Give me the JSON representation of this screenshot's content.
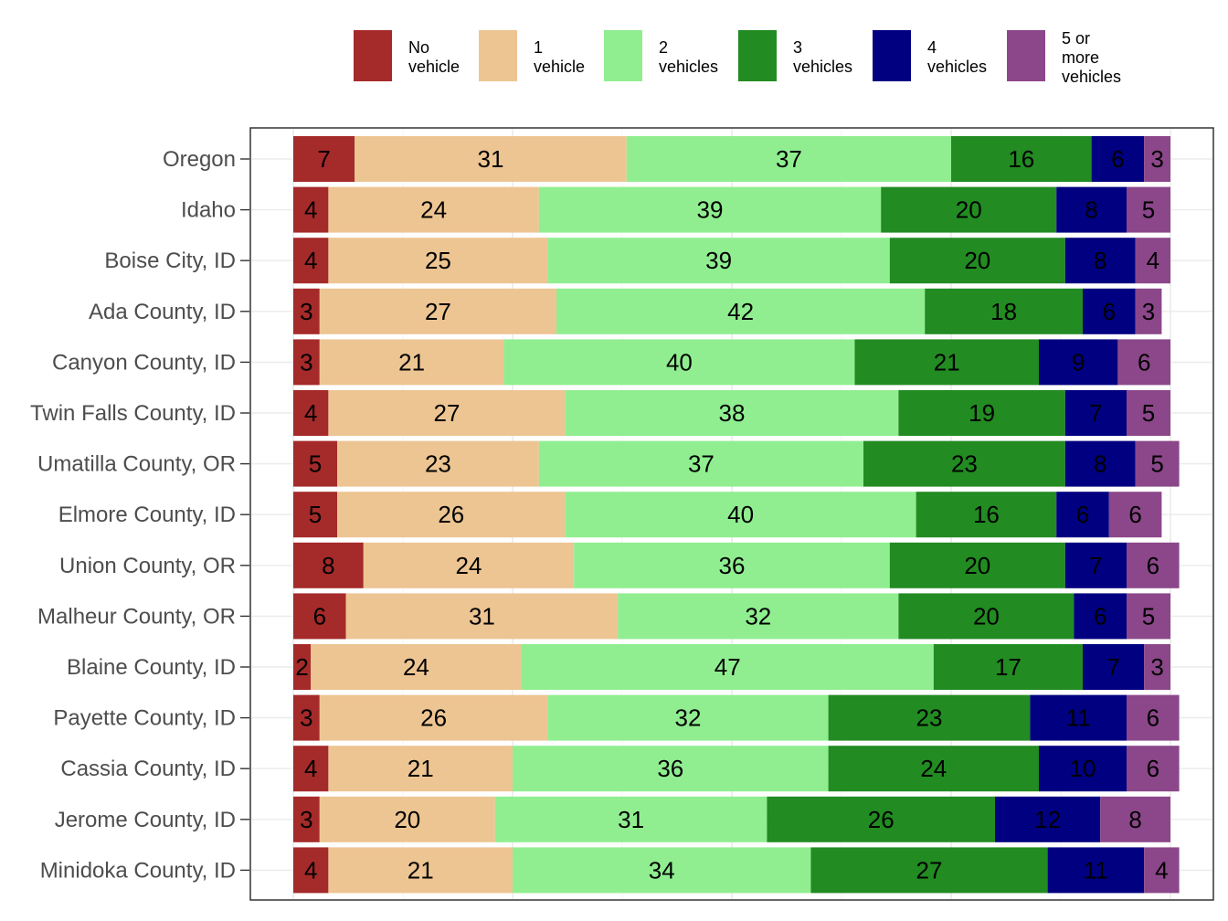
{
  "chart_data": {
    "type": "bar",
    "orientation": "horizontal",
    "stacked": true,
    "normalized_percent": true,
    "title": "",
    "xlabel": "",
    "ylabel": "",
    "xlim": [
      0,
      100
    ],
    "grid": true,
    "legend_position": "top",
    "categories": [
      "Oregon",
      "Idaho",
      "Boise City, ID",
      "Ada County, ID",
      "Canyon County, ID",
      "Twin Falls County, ID",
      "Umatilla County, OR",
      "Elmore County, ID",
      "Union County, OR",
      "Malheur County, OR",
      "Blaine County, ID",
      "Payette County, ID",
      "Cassia County, ID",
      "Jerome County, ID",
      "Minidoka County, ID"
    ],
    "series": [
      {
        "name": "No vehicle",
        "legend_lines": [
          "No",
          "vehicle"
        ],
        "color": "#a52a2a",
        "values": [
          7,
          4,
          4,
          3,
          3,
          4,
          5,
          5,
          8,
          6,
          2,
          3,
          4,
          3,
          4
        ]
      },
      {
        "name": "1 vehicle",
        "legend_lines": [
          "1",
          "vehicle"
        ],
        "color": "#edc592",
        "values": [
          31,
          24,
          25,
          27,
          21,
          27,
          23,
          26,
          24,
          31,
          24,
          26,
          21,
          20,
          21
        ]
      },
      {
        "name": "2 vehicles",
        "legend_lines": [
          "2",
          "vehicles"
        ],
        "color": "#90ee90",
        "values": [
          37,
          39,
          39,
          42,
          40,
          38,
          37,
          40,
          36,
          32,
          47,
          32,
          36,
          31,
          34
        ]
      },
      {
        "name": "3 vehicles",
        "legend_lines": [
          "3",
          "vehicles"
        ],
        "color": "#228b22",
        "values": [
          16,
          20,
          20,
          18,
          21,
          19,
          23,
          16,
          20,
          20,
          17,
          23,
          24,
          26,
          27
        ]
      },
      {
        "name": "4 vehicles",
        "legend_lines": [
          "4",
          "vehicles"
        ],
        "color": "#000080",
        "values": [
          6,
          8,
          8,
          6,
          9,
          7,
          8,
          6,
          7,
          6,
          7,
          11,
          10,
          12,
          11
        ]
      },
      {
        "name": "5 or more vehicles",
        "legend_lines": [
          "5 or",
          "more",
          "vehicles"
        ],
        "color": "#8b4789",
        "values": [
          3,
          5,
          4,
          3,
          6,
          5,
          5,
          6,
          6,
          5,
          3,
          6,
          6,
          8,
          4
        ]
      }
    ]
  }
}
